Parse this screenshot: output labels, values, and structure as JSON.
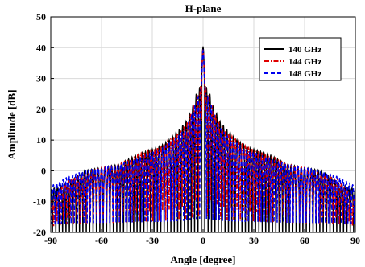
{
  "chart_data": {
    "type": "line",
    "title": "H-plane",
    "xlabel": "Angle [degree]",
    "ylabel": "Amplitude [dB]",
    "xlim": [
      -90,
      90
    ],
    "ylim": [
      -20,
      50
    ],
    "xticks": [
      -90,
      -60,
      -30,
      0,
      30,
      60,
      90
    ],
    "yticks": [
      -20,
      -10,
      0,
      10,
      20,
      30,
      40,
      50
    ],
    "grid": true,
    "legend_position": "top-right",
    "series": [
      {
        "name": "140 GHz",
        "color": "#000000",
        "style": "solid",
        "peak_db": 40,
        "lobe_period_deg": 2.0,
        "envelope_x": [
          0,
          1,
          2,
          4,
          6,
          10,
          15,
          20,
          25,
          30,
          40,
          50,
          60,
          70,
          80,
          90
        ],
        "envelope_y": [
          40,
          30,
          27,
          25,
          21,
          16,
          13,
          10,
          8,
          7,
          5,
          2,
          1,
          0,
          -4,
          -6
        ],
        "null_db": -20
      },
      {
        "name": "144 GHz",
        "color": "#e00000",
        "style": "dashdot",
        "peak_db": 39.5,
        "lobe_period_deg": 1.95,
        "envelope_x": [
          0,
          1,
          2,
          4,
          6,
          10,
          15,
          20,
          25,
          30,
          40,
          50,
          60,
          70,
          80,
          90
        ],
        "envelope_y": [
          39.5,
          29,
          26,
          24,
          20,
          15,
          12,
          10,
          8,
          7,
          5,
          2,
          1,
          -1,
          -3,
          -10
        ],
        "null_db": -19
      },
      {
        "name": "148 GHz",
        "color": "#0000ee",
        "style": "dashed",
        "peak_db": 39,
        "lobe_period_deg": 1.9,
        "envelope_x": [
          0,
          1,
          2,
          4,
          6,
          10,
          15,
          20,
          25,
          30,
          40,
          50,
          60,
          70,
          80,
          90
        ],
        "envelope_y": [
          39,
          28,
          25,
          23,
          19,
          14,
          11,
          9,
          7,
          6,
          4,
          2,
          1,
          0,
          -2,
          -5
        ],
        "null_db": -18
      }
    ]
  }
}
